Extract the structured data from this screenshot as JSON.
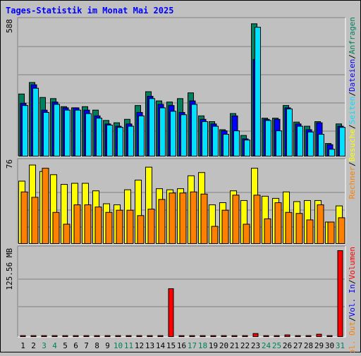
{
  "title": "Tages-Statistik im Monat Mai 2025",
  "colors": {
    "background": "#c0c0c0",
    "title": "#0000ff",
    "hits": "#00805c",
    "files": "#0000ff",
    "pages": "#00e0ff",
    "visits": "#ffff00",
    "sites": "#ff8000",
    "volume": "#ff0000",
    "weekend": "#00805c",
    "weekday": "#000000"
  },
  "chart_data": [
    {
      "type": "bar",
      "panel": "top",
      "ymax_label": "588",
      "ylim": [
        0,
        588
      ],
      "categories": [
        "1",
        "2",
        "3",
        "4",
        "5",
        "6",
        "7",
        "8",
        "9",
        "10",
        "11",
        "12",
        "13",
        "14",
        "15",
        "16",
        "17",
        "18",
        "19",
        "20",
        "21",
        "22",
        "23",
        "24",
        "25",
        "26",
        "27",
        "28",
        "29",
        "30",
        "31"
      ],
      "weekend_days": [
        "3",
        "4",
        "10",
        "11",
        "17",
        "18",
        "24",
        "25",
        "31"
      ],
      "series": [
        {
          "name": "Anfragen",
          "values": [
            270,
            320,
            255,
            250,
            215,
            210,
            215,
            200,
            155,
            145,
            160,
            220,
            280,
            240,
            235,
            250,
            275,
            175,
            150,
            115,
            185,
            90,
            575,
            165,
            165,
            220,
            148,
            130,
            150,
            55,
            140
          ]
        },
        {
          "name": "Dateien",
          "values": [
            230,
            310,
            200,
            235,
            210,
            210,
            200,
            175,
            140,
            130,
            140,
            190,
            260,
            225,
            220,
            190,
            240,
            160,
            140,
            110,
            175,
            75,
            420,
            160,
            160,
            210,
            140,
            115,
            145,
            50,
            130
          ]
        },
        {
          "name": "Seiten",
          "values": [
            220,
            295,
            190,
            225,
            200,
            200,
            185,
            165,
            135,
            125,
            130,
            175,
            250,
            210,
            195,
            180,
            225,
            150,
            130,
            95,
            110,
            70,
            560,
            155,
            110,
            205,
            130,
            105,
            95,
            30,
            125
          ]
        }
      ],
      "legend": [
        "Anfragen",
        "Dateien",
        "Seiten"
      ]
    },
    {
      "type": "bar",
      "panel": "middle",
      "ymax_label": "76",
      "ylim": [
        0,
        76
      ],
      "categories": [
        "1",
        "2",
        "3",
        "4",
        "5",
        "6",
        "7",
        "8",
        "9",
        "10",
        "11",
        "12",
        "13",
        "14",
        "15",
        "16",
        "17",
        "18",
        "19",
        "20",
        "21",
        "22",
        "23",
        "24",
        "25",
        "26",
        "27",
        "28",
        "29",
        "30",
        "31"
      ],
      "series": [
        {
          "name": "Besuche",
          "values": [
            58,
            73,
            67,
            64,
            55,
            56,
            56,
            49,
            37,
            36,
            50,
            59,
            71,
            51,
            50,
            51,
            63,
            66,
            36,
            38,
            49,
            40,
            70,
            44,
            42,
            48,
            39,
            40,
            40,
            20,
            35
          ]
        },
        {
          "name": "Rechner",
          "values": [
            48,
            43,
            70,
            29,
            18,
            36,
            36,
            34,
            29,
            31,
            31,
            26,
            32,
            41,
            47,
            47,
            48,
            46,
            16,
            31,
            45,
            18,
            45,
            23,
            38,
            29,
            28,
            22,
            36,
            20,
            24
          ]
        }
      ],
      "legend": [
        "Besuche",
        "Rechner"
      ]
    },
    {
      "type": "bar",
      "panel": "bottom",
      "ymax_label": "125.56 MB",
      "ylim": [
        0,
        125.56
      ],
      "categories": [
        "1",
        "2",
        "3",
        "4",
        "5",
        "6",
        "7",
        "8",
        "9",
        "10",
        "11",
        "12",
        "13",
        "14",
        "15",
        "16",
        "17",
        "18",
        "19",
        "20",
        "21",
        "22",
        "23",
        "24",
        "25",
        "26",
        "27",
        "28",
        "29",
        "30",
        "31"
      ],
      "series": [
        {
          "name": "Volumen",
          "values": [
            1.5,
            1.5,
            1.5,
            1.5,
            1.5,
            1.5,
            1.5,
            1.5,
            1.5,
            1.5,
            1.5,
            1.5,
            1.5,
            1.5,
            70,
            1.5,
            1.5,
            1.5,
            1.5,
            1.5,
            1.5,
            1.5,
            4.5,
            1.5,
            1.5,
            2.5,
            1.5,
            1.5,
            3.5,
            1.5,
            125.56
          ]
        }
      ],
      "legend": [
        "Volumen",
        "Vol. In",
        "Vol. Out"
      ]
    }
  ]
}
